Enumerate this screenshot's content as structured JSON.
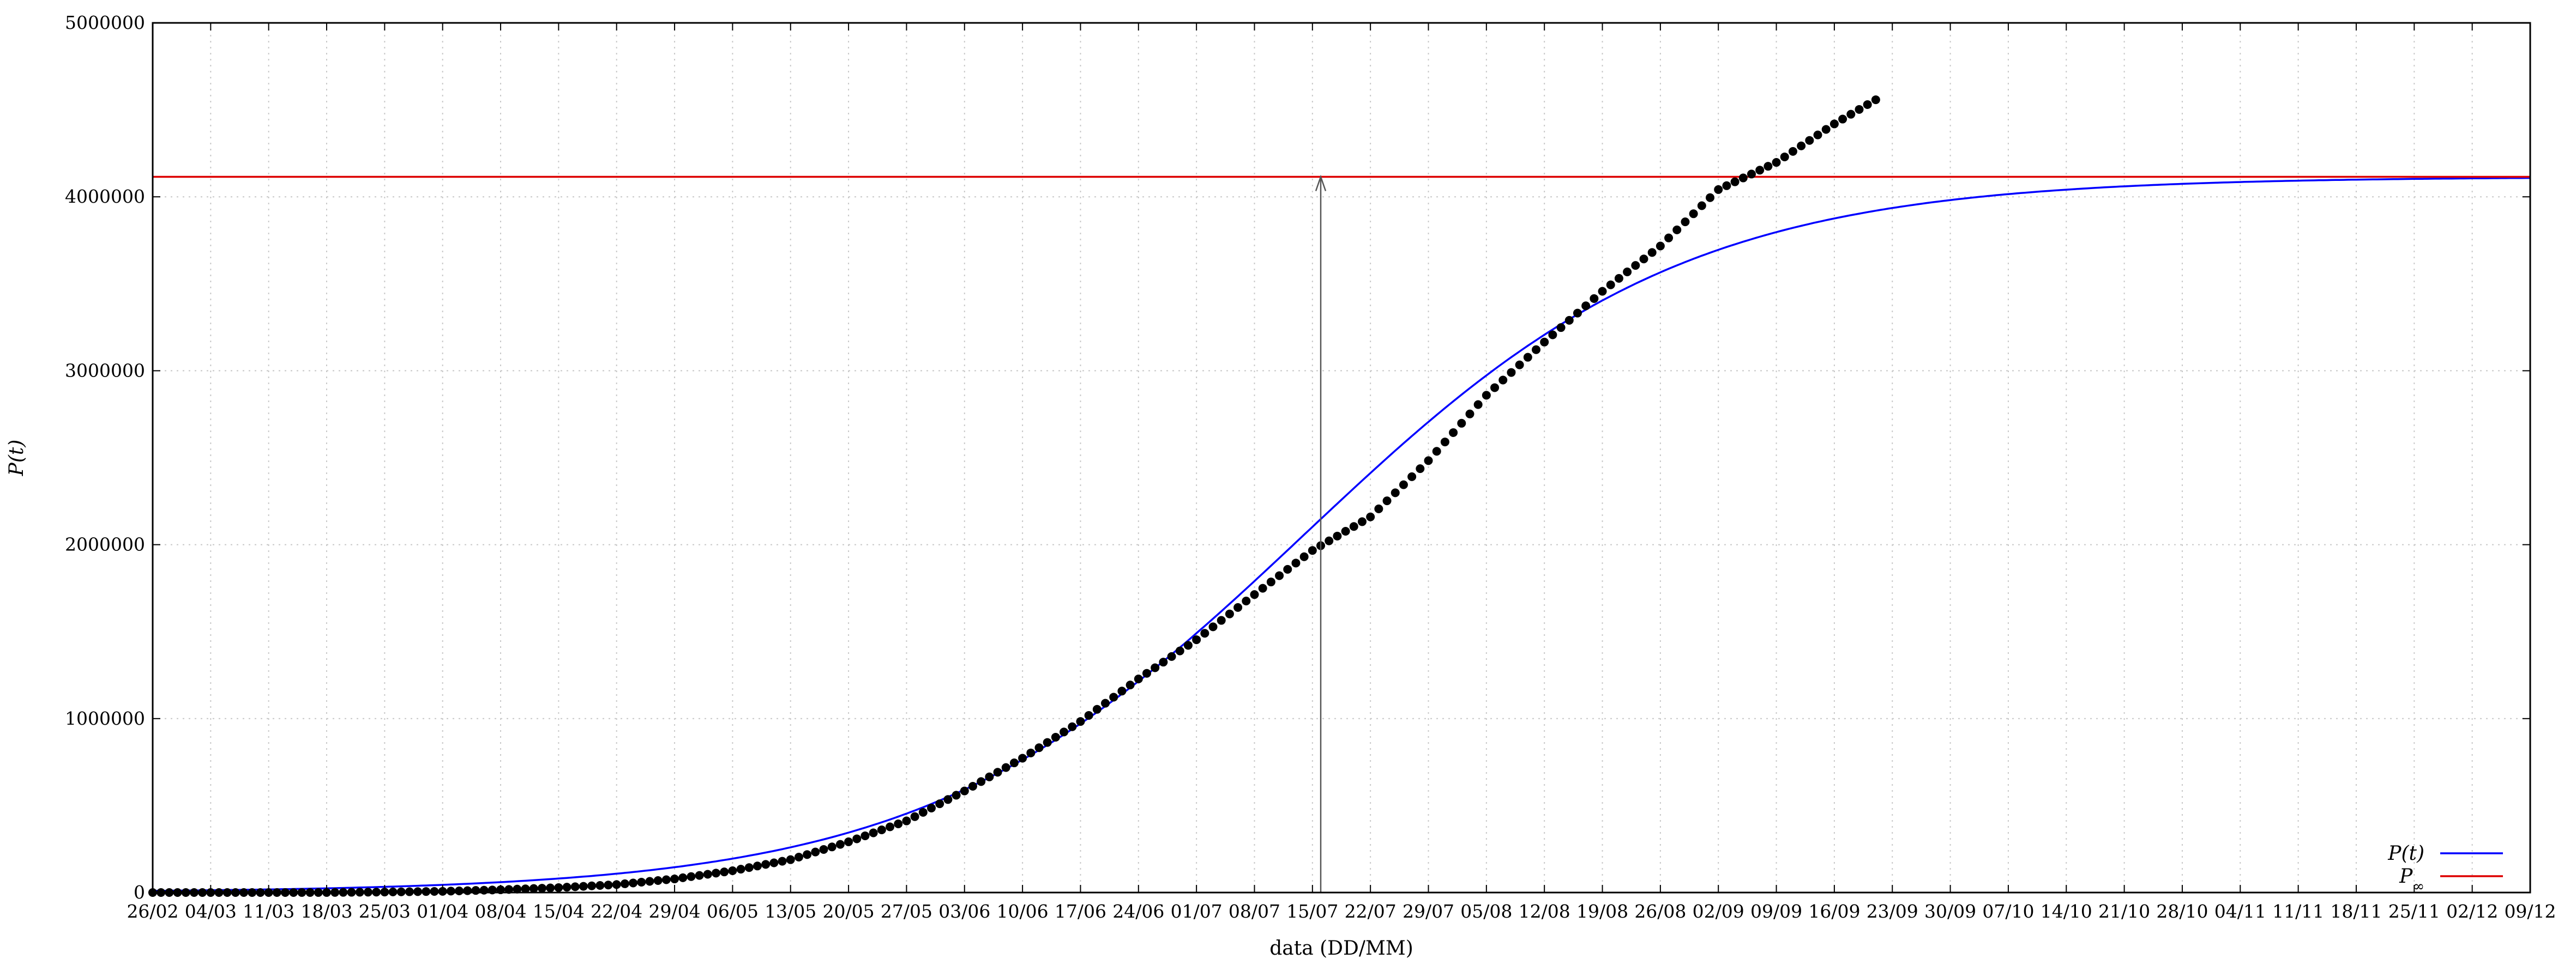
{
  "chart_data": {
    "type": "line",
    "xlabel": "data (DD/MM)",
    "ylabel": "P(t)",
    "ylim": [
      0,
      5000000
    ],
    "xlim": [
      "2020-02-26",
      "2020-12-09"
    ],
    "grid": true,
    "legend_position": "bottom-right",
    "x_tick_labels": [
      "26/02",
      "04/03",
      "11/03",
      "18/03",
      "25/03",
      "01/04",
      "08/04",
      "15/04",
      "22/04",
      "29/04",
      "06/05",
      "13/05",
      "20/05",
      "27/05",
      "03/06",
      "10/06",
      "17/06",
      "24/06",
      "01/07",
      "08/07",
      "15/07",
      "22/07",
      "29/07",
      "05/08",
      "12/08",
      "19/08",
      "26/08",
      "02/09",
      "09/09",
      "16/09",
      "23/09",
      "30/09",
      "07/10",
      "14/10",
      "21/10",
      "28/10",
      "04/11",
      "11/11",
      "18/11",
      "25/11",
      "02/12",
      "09/12"
    ],
    "y_tick_labels": [
      "0",
      "1000000",
      "2000000",
      "3000000",
      "4000000",
      "5000000"
    ],
    "legend": [
      {
        "label": "P(t)",
        "color": "#0000ff"
      },
      {
        "label": "P∞",
        "color": "#dd0000"
      }
    ],
    "series": [
      {
        "name": "P(t)",
        "kind": "logistic-fit",
        "color": "#0000ff",
        "P_inf": 4115000,
        "midpoint_date": "2020-07-14",
        "growth_rate_per_day": 0.0435
      },
      {
        "name": "P∞",
        "kind": "horizontal-line",
        "color": "#dd0000",
        "value": 4115000
      },
      {
        "name": "observed",
        "kind": "scatter",
        "color": "#000000",
        "x": [
          "2020-02-26",
          "2020-03-04",
          "2020-03-11",
          "2020-03-18",
          "2020-03-25",
          "2020-04-01",
          "2020-04-08",
          "2020-04-15",
          "2020-04-22",
          "2020-04-29",
          "2020-05-06",
          "2020-05-13",
          "2020-05-20",
          "2020-05-27",
          "2020-06-03",
          "2020-06-10",
          "2020-06-17",
          "2020-06-24",
          "2020-07-01",
          "2020-07-08",
          "2020-07-15",
          "2020-07-22",
          "2020-07-29",
          "2020-08-05",
          "2020-08-12",
          "2020-08-19",
          "2020-08-26",
          "2020-09-02",
          "2020-09-09",
          "2020-09-16",
          "2020-09-21"
        ],
        "y": [
          1,
          3,
          77,
          291,
          2915,
          6836,
          15927,
          28320,
          45757,
          78162,
          125218,
          188974,
          291579,
          411821,
          584016,
          772416,
          983359,
          1228114,
          1453369,
          1713160,
          1966748,
          2159654,
          2483191,
          2859073,
          3164785,
          3456652,
          3717156,
          4041638,
          4197889,
          4419083,
          4558040
        ]
      }
    ],
    "annotations": [
      {
        "kind": "arrow",
        "x": "2020-07-16",
        "from_y": 0,
        "to_y": 4115000,
        "color": "#555555"
      }
    ]
  }
}
